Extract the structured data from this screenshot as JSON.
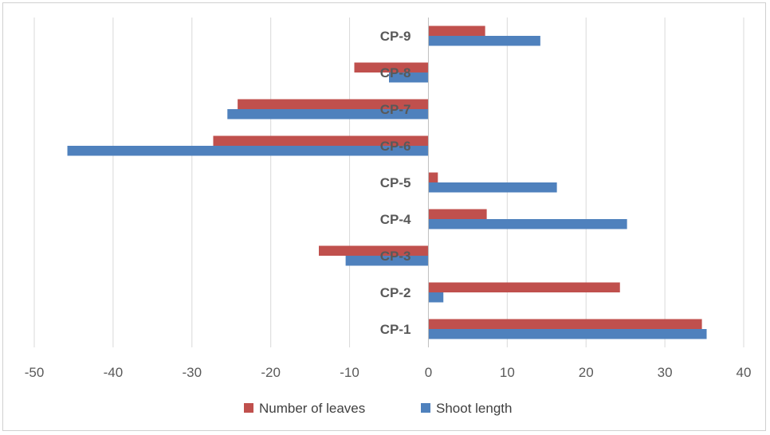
{
  "chart_data": {
    "type": "bar",
    "orientation": "horizontal",
    "categories": [
      "CP-1",
      "CP-2",
      "CP-3",
      "CP-4",
      "CP-5",
      "CP-6",
      "CP-7",
      "CP-8",
      "CP-9"
    ],
    "series": [
      {
        "name": "Number of leaves",
        "color": "#C0504D",
        "values": [
          34.7,
          24.3,
          -13.9,
          7.4,
          1.2,
          -27.3,
          -24.2,
          -9.4,
          7.2
        ]
      },
      {
        "name": "Shoot length",
        "color": "#4F81BD",
        "values": [
          35.3,
          1.9,
          -10.5,
          25.2,
          16.3,
          -45.8,
          -25.5,
          -5.0,
          14.2
        ]
      }
    ],
    "xlim": [
      -50,
      40
    ],
    "xticks": [
      -50,
      -40,
      -30,
      -20,
      -10,
      0,
      10,
      20,
      30,
      40
    ],
    "title": "",
    "xlabel": "",
    "ylabel": "",
    "grid": "vertical",
    "legend_position": "bottom"
  }
}
